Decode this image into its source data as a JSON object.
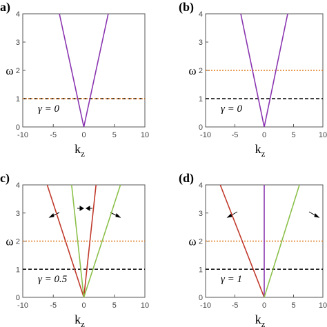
{
  "chart_data": [
    {
      "type": "line",
      "label": "(a)",
      "ylabel": "ω",
      "xlabel": [
        "k",
        "z"
      ],
      "annotation": "γ = 0",
      "xlim": [
        -10,
        10
      ],
      "xticks": [
        -10,
        -5,
        0,
        5,
        10
      ],
      "ylim": [
        0,
        4
      ],
      "yticks": [
        0,
        1,
        2,
        3,
        4
      ],
      "series": [
        {
          "color": "#000000",
          "style": "dashed",
          "x": [
            -10,
            10
          ],
          "values": [
            1,
            1
          ]
        },
        {
          "color": "#e07b20",
          "style": "dotted",
          "x": [
            -10,
            10
          ],
          "values": [
            1,
            1
          ]
        },
        {
          "color": "#8a35b0",
          "style": "solid",
          "x": [
            -4,
            0,
            4
          ],
          "values": [
            4,
            0,
            4
          ]
        }
      ]
    },
    {
      "type": "line",
      "label": "(b)",
      "ylabel": "ω",
      "xlabel": [
        "k",
        "z"
      ],
      "annotation": "γ = 0",
      "xlim": [
        -10,
        10
      ],
      "xticks": [
        -10,
        -5,
        0,
        5,
        10
      ],
      "ylim": [
        0,
        4
      ],
      "yticks": [
        0,
        1,
        2,
        3,
        4
      ],
      "series": [
        {
          "color": "#000000",
          "style": "dashed",
          "x": [
            -10,
            10
          ],
          "values": [
            1,
            1
          ]
        },
        {
          "color": "#e07b20",
          "style": "dotted",
          "x": [
            -10,
            10
          ],
          "values": [
            2,
            2
          ]
        },
        {
          "color": "#8a35b0",
          "style": "solid",
          "x": [
            -4,
            0,
            4
          ],
          "values": [
            4,
            0,
            4
          ]
        }
      ]
    },
    {
      "type": "line",
      "label": "(c)",
      "ylabel": "ω",
      "xlabel": [
        "k",
        "z"
      ],
      "annotation": "γ = 0.5",
      "xlim": [
        -10,
        10
      ],
      "xticks": [
        -10,
        -5,
        0,
        5,
        10
      ],
      "ylim": [
        0,
        4
      ],
      "yticks": [
        0,
        1,
        2,
        3,
        4
      ],
      "series": [
        {
          "color": "#000000",
          "style": "dashed",
          "x": [
            -10,
            10
          ],
          "values": [
            1,
            1
          ]
        },
        {
          "color": "#e07b20",
          "style": "dotted",
          "x": [
            -10,
            10
          ],
          "values": [
            2,
            2
          ]
        },
        {
          "color": "#c0392b",
          "style": "solid",
          "x": [
            -6,
            0,
            2
          ],
          "values": [
            4,
            0,
            4
          ]
        },
        {
          "color": "#8cc04b",
          "style": "solid",
          "x": [
            -2,
            0,
            6
          ],
          "values": [
            4,
            0,
            4
          ]
        }
      ]
    },
    {
      "type": "line",
      "label": "(d)",
      "ylabel": "ω",
      "xlabel": [
        "k",
        "z"
      ],
      "annotation": "γ = 1",
      "xlim": [
        -10,
        10
      ],
      "xticks": [
        -10,
        -5,
        0,
        5,
        10
      ],
      "ylim": [
        0,
        4
      ],
      "yticks": [
        0,
        1,
        2,
        3,
        4
      ],
      "series": [
        {
          "color": "#000000",
          "style": "dashed",
          "x": [
            -10,
            10
          ],
          "values": [
            1,
            1
          ]
        },
        {
          "color": "#e07b20",
          "style": "dotted",
          "x": [
            -10,
            10
          ],
          "values": [
            2,
            2
          ]
        },
        {
          "color": "#c0392b",
          "style": "solid",
          "x": [
            -7.5,
            0
          ],
          "values": [
            4,
            0
          ]
        },
        {
          "color": "#8a35b0",
          "style": "solid",
          "x": [
            0,
            0
          ],
          "values": [
            0,
            4
          ]
        },
        {
          "color": "#8cc04b",
          "style": "solid",
          "x": [
            0,
            6
          ],
          "values": [
            0,
            4
          ]
        }
      ]
    }
  ]
}
